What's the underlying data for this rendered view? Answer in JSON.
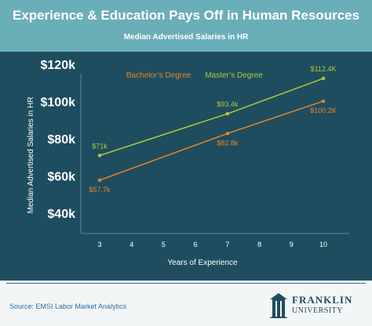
{
  "header": {
    "title": "Experience & Education Pays Off in Human Resources",
    "subtitle": "Median Advertised Salaries in HR"
  },
  "footer": {
    "source": "Source: EMSI Labor Market Analytics",
    "logo_line1": "FRANKLIN",
    "logo_line2": "UNIVERSITY"
  },
  "colors": {
    "header_bg": "#6aaeb8",
    "panel_bg": "#1e4d5f",
    "bachelor": "#e8832a",
    "master": "#b5c93a",
    "footer_text": "#2a6fa0"
  },
  "chart_data": {
    "type": "line",
    "xlabel": "Years of Experience",
    "ylabel": "Median Advertised Salaries in HR",
    "x_ticks": [
      3,
      4,
      5,
      6,
      7,
      8,
      9,
      10
    ],
    "xlim": [
      3,
      10
    ],
    "y_ticks": [
      40,
      60,
      80,
      100,
      120
    ],
    "y_tick_labels": [
      "$40k",
      "$60k",
      "$80k",
      "$100k",
      "$120k"
    ],
    "ylim": [
      40,
      120
    ],
    "legend_placement": "top-center",
    "series": [
      {
        "name": "Bachelor’s Degree",
        "color": "#e8832a",
        "x": [
          3,
          7,
          10
        ],
        "values": [
          57.7,
          82.8,
          100.2
        ],
        "labels": [
          "$57.7k",
          "$82.8k",
          "$100.2K"
        ]
      },
      {
        "name": "Master’s Degree",
        "color": "#b5c93a",
        "x": [
          3,
          7,
          10
        ],
        "values": [
          71,
          93.4,
          112.4
        ],
        "labels": [
          "$71k",
          "$93.4k",
          "$112.4K"
        ]
      }
    ]
  }
}
